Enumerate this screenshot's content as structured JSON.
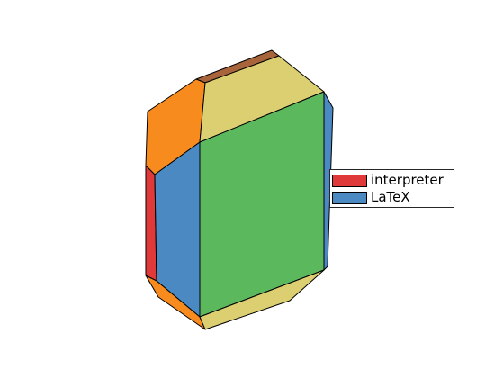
{
  "figure": {
    "type": "3d-polyhedron-patches",
    "faces": [
      {
        "name": "back-brown-strip",
        "color": "#a8643a"
      },
      {
        "name": "top-orange-face",
        "color": "#f78b1e"
      },
      {
        "name": "top-yellow-face",
        "color": "#dccf72"
      },
      {
        "name": "right-blue-strip",
        "color": "#4a89c2"
      },
      {
        "name": "left-red-face",
        "color": "#e0393a"
      },
      {
        "name": "front-blue-face",
        "color": "#4a89c2"
      },
      {
        "name": "front-green-face",
        "color": "#5cb85c"
      },
      {
        "name": "bottom-orange-face",
        "color": "#f78b1e"
      },
      {
        "name": "bottom-yellow-face",
        "color": "#dccf72"
      }
    ]
  },
  "legend": {
    "items": [
      {
        "label": "interpreter",
        "color": "#e0393a"
      },
      {
        "label": "LaTeX",
        "color": "#4a89c2"
      }
    ]
  }
}
